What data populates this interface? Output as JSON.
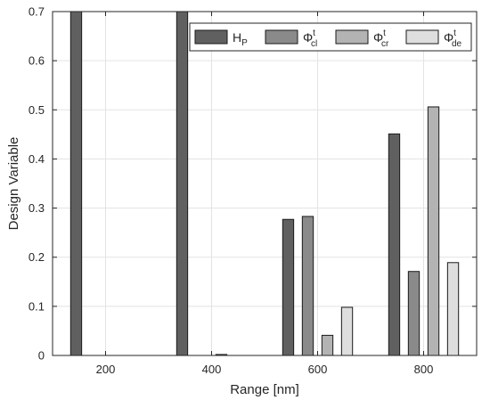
{
  "chart_data": {
    "type": "bar",
    "xlabel": "Range [nm]",
    "ylabel": "Design Variable",
    "xlim": [
      100,
      900
    ],
    "ylim": [
      0,
      0.7
    ],
    "x_ticks": [
      200,
      400,
      600,
      800
    ],
    "y_ticks": [
      0,
      0.1,
      0.2,
      0.3,
      0.4,
      0.5,
      0.6,
      0.7
    ],
    "y_tick_labels": [
      "0",
      "0.1",
      "0.2",
      "0.3",
      "0.4",
      "0.5",
      "0.6",
      "0.7"
    ],
    "grid": true,
    "legend_placement": "top-right",
    "categories": [
      200,
      400,
      600,
      800
    ],
    "series": [
      {
        "name": "H",
        "subscript": "P",
        "superscript": "",
        "color": "#606060",
        "values": [
          0.7,
          0.7,
          0.277,
          0.451
        ]
      },
      {
        "name": "Φ",
        "subscript": "cl",
        "superscript": "t",
        "color": "#8a8a8a",
        "values": [
          0.0,
          0.0,
          0.283,
          0.171
        ]
      },
      {
        "name": "Φ",
        "subscript": "cr",
        "superscript": "t",
        "color": "#b3b3b3",
        "values": [
          0.0,
          0.002,
          0.041,
          0.506
        ]
      },
      {
        "name": "Φ",
        "subscript": "de",
        "superscript": "t",
        "color": "#dedede",
        "values": [
          0.0,
          0.0,
          0.098,
          0.189
        ]
      }
    ]
  }
}
